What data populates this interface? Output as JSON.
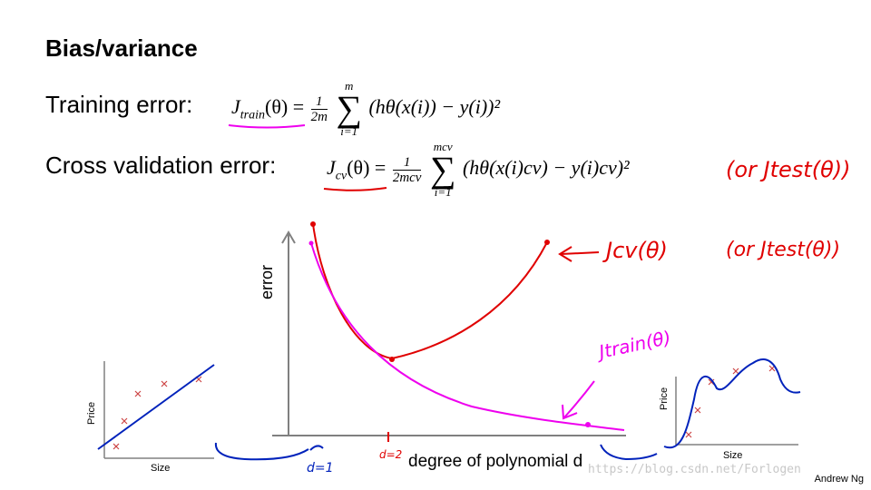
{
  "title": "Bias/variance",
  "training": {
    "label": "Training error:",
    "lhs": "J",
    "lhs_sub": "train",
    "lhs_arg": "(θ) =",
    "frac_num": "1",
    "frac_den": "2m",
    "sum_top": "m",
    "sum_bottom": "i=1",
    "body": "(hθ(x(i)) − y(i))²"
  },
  "cv": {
    "label": "Cross validation error:",
    "lhs": "J",
    "lhs_sub": "cv",
    "lhs_arg": "(θ) =",
    "frac_num": "1",
    "frac_den": "2mcv",
    "sum_top": "mcv",
    "sum_bottom": "i=1",
    "body": "(hθ(x(i)cv) − y(i)cv)²",
    "note": "(or Jtest(θ))"
  },
  "plot": {
    "ylabel": "error",
    "xlabel": "degree of polynomial d",
    "cv_curve_label": "Jcv(θ)",
    "cv_curve_note": "(or Jtest(θ))",
    "train_curve_label": "Jtrain(θ)",
    "d1_label": "d=1",
    "d2_label": "d=2",
    "cv_color": "#e00000",
    "train_color": "#ee00ee",
    "ink_blue": "#0022bb"
  },
  "left_plot": {
    "ylabel": "Price",
    "xlabel": "Size"
  },
  "right_plot": {
    "ylabel": "Price",
    "xlabel": "Size"
  },
  "credit": "Andrew Ng",
  "watermark": "https://blog.csdn.net/Forlogen"
}
